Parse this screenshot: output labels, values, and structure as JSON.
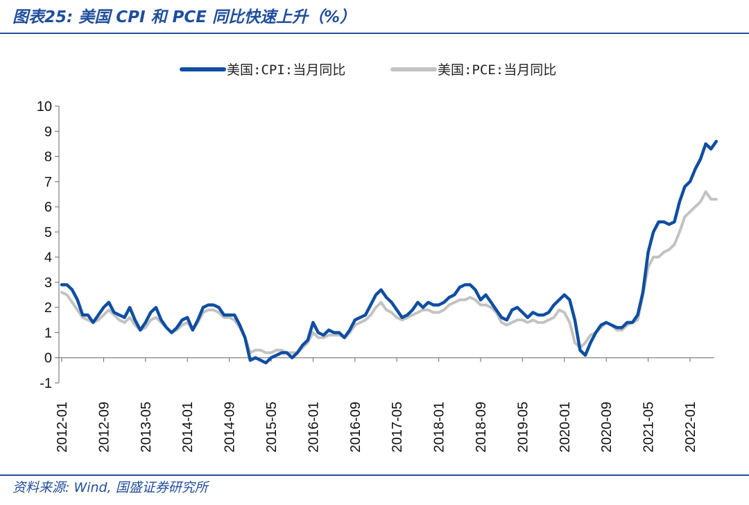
{
  "figure": {
    "title": "图表25: 美国 CPI 和 PCE 同比快速上升（%）",
    "source": "资料来源: Wind, 国盛证券研究所"
  },
  "colors": {
    "cpi": "#0f4ea1",
    "pce": "#c2c2c2",
    "accent": "#1f4e9a"
  },
  "chart_data": {
    "type": "line",
    "title": "",
    "xlabel": "",
    "ylabel": "",
    "ylim": [
      -1,
      10
    ],
    "yticks": [
      "-1",
      "0",
      "1",
      "2",
      "3",
      "4",
      "5",
      "6",
      "7",
      "8",
      "9",
      "10"
    ],
    "xticks": [
      "2012-01",
      "2012-09",
      "2013-05",
      "2014-01",
      "2014-09",
      "2015-05",
      "2016-01",
      "2016-09",
      "2017-05",
      "2018-01",
      "2018-09",
      "2019-05",
      "2020-01",
      "2020-09",
      "2021-05",
      "2022-01"
    ],
    "x_start": "2012-01",
    "legend": "top-center",
    "grid": false,
    "series": [
      {
        "name": "美国:CPI:当月同比",
        "values": [
          2.9,
          2.9,
          2.7,
          2.3,
          1.7,
          1.7,
          1.4,
          1.7,
          2.0,
          2.2,
          1.8,
          1.7,
          1.6,
          2.0,
          1.5,
          1.1,
          1.4,
          1.8,
          2.0,
          1.5,
          1.2,
          1.0,
          1.2,
          1.5,
          1.6,
          1.1,
          1.5,
          2.0,
          2.1,
          2.1,
          2.0,
          1.7,
          1.7,
          1.7,
          1.3,
          0.8,
          -0.1,
          0.0,
          -0.1,
          -0.2,
          0.0,
          0.1,
          0.2,
          0.2,
          0.0,
          0.2,
          0.5,
          0.7,
          1.4,
          1.0,
          0.9,
          1.1,
          1.0,
          1.0,
          0.8,
          1.1,
          1.5,
          1.6,
          1.7,
          2.1,
          2.5,
          2.7,
          2.4,
          2.2,
          1.9,
          1.6,
          1.7,
          1.9,
          2.2,
          2.0,
          2.2,
          2.1,
          2.1,
          2.2,
          2.4,
          2.5,
          2.8,
          2.9,
          2.9,
          2.7,
          2.3,
          2.5,
          2.2,
          1.9,
          1.6,
          1.5,
          1.9,
          2.0,
          1.8,
          1.6,
          1.8,
          1.7,
          1.7,
          1.8,
          2.1,
          2.3,
          2.5,
          2.3,
          1.5,
          0.3,
          0.1,
          0.6,
          1.0,
          1.3,
          1.4,
          1.3,
          1.2,
          1.2,
          1.4,
          1.4,
          1.7,
          2.6,
          4.2,
          5.0,
          5.4,
          5.4,
          5.3,
          5.4,
          6.2,
          6.8,
          7.0,
          7.5,
          7.9,
          8.5,
          8.3,
          8.6
        ],
        "color": "#0f4ea1"
      },
      {
        "name": "美国:PCE:当月同比",
        "values": [
          2.6,
          2.5,
          2.2,
          1.9,
          1.6,
          1.5,
          1.4,
          1.5,
          1.7,
          1.9,
          1.7,
          1.5,
          1.4,
          1.6,
          1.3,
          1.1,
          1.2,
          1.5,
          1.6,
          1.4,
          1.2,
          1.0,
          1.1,
          1.3,
          1.4,
          1.1,
          1.4,
          1.8,
          1.9,
          1.9,
          1.8,
          1.6,
          1.6,
          1.5,
          1.2,
          0.8,
          0.2,
          0.3,
          0.3,
          0.2,
          0.2,
          0.3,
          0.3,
          0.2,
          0.2,
          0.2,
          0.4,
          0.6,
          1.0,
          0.8,
          0.8,
          0.9,
          0.9,
          0.9,
          0.8,
          1.0,
          1.3,
          1.4,
          1.5,
          1.7,
          2.0,
          2.2,
          1.9,
          1.8,
          1.6,
          1.5,
          1.6,
          1.7,
          1.8,
          1.9,
          1.9,
          1.8,
          1.8,
          1.9,
          2.1,
          2.2,
          2.3,
          2.3,
          2.4,
          2.3,
          2.1,
          2.1,
          2.0,
          1.8,
          1.4,
          1.3,
          1.4,
          1.5,
          1.5,
          1.4,
          1.5,
          1.4,
          1.4,
          1.5,
          1.6,
          1.9,
          1.8,
          1.4,
          0.6,
          0.4,
          0.6,
          0.9,
          1.0,
          1.2,
          1.4,
          1.3,
          1.1,
          1.1,
          1.3,
          1.4,
          1.5,
          2.5,
          3.6,
          4.0,
          4.0,
          4.2,
          4.3,
          4.5,
          5.0,
          5.6,
          5.8,
          6.0,
          6.2,
          6.6,
          6.3,
          6.3
        ]
      }
    ]
  }
}
